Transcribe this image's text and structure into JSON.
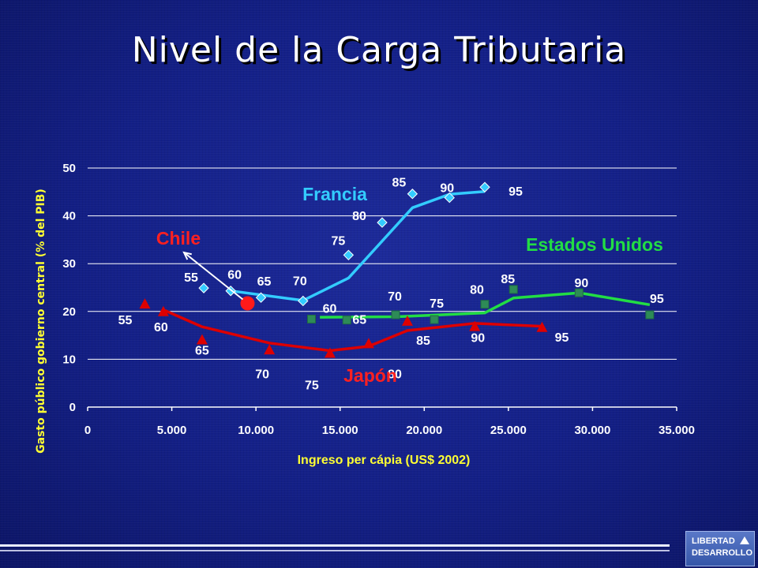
{
  "slide": {
    "title": "Nivel de la Carga Tributaria",
    "logo_line1": "LIBERTAD",
    "logo_line2": "DESARROLLO"
  },
  "chart_data": {
    "type": "line",
    "xlabel": "Ingreso per cápia (US$ 2002)",
    "ylabel": "Gasto público gobierno central  (% del PIB)",
    "xlim": [
      0,
      35000
    ],
    "ylim": [
      0,
      50
    ],
    "x_ticks": [
      "0",
      "5.000",
      "10.000",
      "15.000",
      "20.000",
      "25.000",
      "30.000",
      "35.000"
    ],
    "y_ticks": [
      "0",
      "10",
      "20",
      "30",
      "40",
      "50"
    ],
    "grid": "horizontal",
    "series": [
      {
        "name": "Francia",
        "color": "#33ccff",
        "marker": "diamond",
        "points": [
          {
            "label": "55",
            "x": 6900,
            "y": 24.9
          },
          {
            "label": "60",
            "x": 8500,
            "y": 24.3
          },
          {
            "label": "65",
            "x": 10300,
            "y": 22.9
          },
          {
            "label": "70",
            "x": 12800,
            "y": 22.2
          },
          {
            "label": "75",
            "x": 15500,
            "y": 31.8
          },
          {
            "label": "80",
            "x": 17500,
            "y": 38.6
          },
          {
            "label": "85",
            "x": 19300,
            "y": 44.6
          },
          {
            "label": "90",
            "x": 21500,
            "y": 43.8
          },
          {
            "label": "95",
            "x": 23600,
            "y": 46.0
          }
        ],
        "trend": [
          [
            8500,
            24.3
          ],
          [
            12800,
            22.3
          ],
          [
            15500,
            27.0
          ],
          [
            19300,
            41.7
          ],
          [
            21500,
            44.5
          ],
          [
            23600,
            45.1
          ]
        ]
      },
      {
        "name": "Estados Unidos",
        "color": "#22dd44",
        "marker": "square",
        "points": [
          {
            "label": "60",
            "x": 13300,
            "y": 18.4
          },
          {
            "label": "65",
            "x": 15400,
            "y": 18.2
          },
          {
            "label": "70",
            "x": 18300,
            "y": 19.3
          },
          {
            "label": "75",
            "x": 20600,
            "y": 18.3
          },
          {
            "label": "80",
            "x": 23600,
            "y": 21.5
          },
          {
            "label": "85",
            "x": 25300,
            "y": 24.6
          },
          {
            "label": "90",
            "x": 29200,
            "y": 23.9
          },
          {
            "label": "95",
            "x": 33400,
            "y": 19.3
          }
        ],
        "trend": [
          [
            13800,
            18.8
          ],
          [
            18300,
            18.9
          ],
          [
            23600,
            19.7
          ],
          [
            25300,
            22.8
          ],
          [
            29200,
            23.9
          ],
          [
            33400,
            21.4
          ]
        ]
      },
      {
        "name": "Japón",
        "color": "#dd0000",
        "marker": "triangle",
        "points": [
          {
            "label": "55",
            "x": 3400,
            "y": 21.6
          },
          {
            "label": "60",
            "x": 4500,
            "y": 20.0
          },
          {
            "label": "65",
            "x": 6800,
            "y": 14.1
          },
          {
            "label": "70",
            "x": 10800,
            "y": 12.0
          },
          {
            "label": "75",
            "x": 14400,
            "y": 11.3
          },
          {
            "label": "80",
            "x": 16700,
            "y": 13.3
          },
          {
            "label": "85",
            "x": 19000,
            "y": 18.0
          },
          {
            "label": "90",
            "x": 23000,
            "y": 16.9
          },
          {
            "label": "95",
            "x": 27000,
            "y": 16.7
          }
        ],
        "trend": [
          [
            4600,
            20.2
          ],
          [
            6800,
            16.8
          ],
          [
            10800,
            13.4
          ],
          [
            14400,
            11.8
          ],
          [
            16700,
            12.7
          ],
          [
            19000,
            16.0
          ],
          [
            23000,
            17.5
          ],
          [
            27000,
            16.9
          ]
        ]
      },
      {
        "name": "Chile",
        "color": "#ff1a1a",
        "marker": "circle",
        "points": [
          {
            "label": "",
            "x": 9500,
            "y": 21.7
          }
        ]
      }
    ]
  }
}
